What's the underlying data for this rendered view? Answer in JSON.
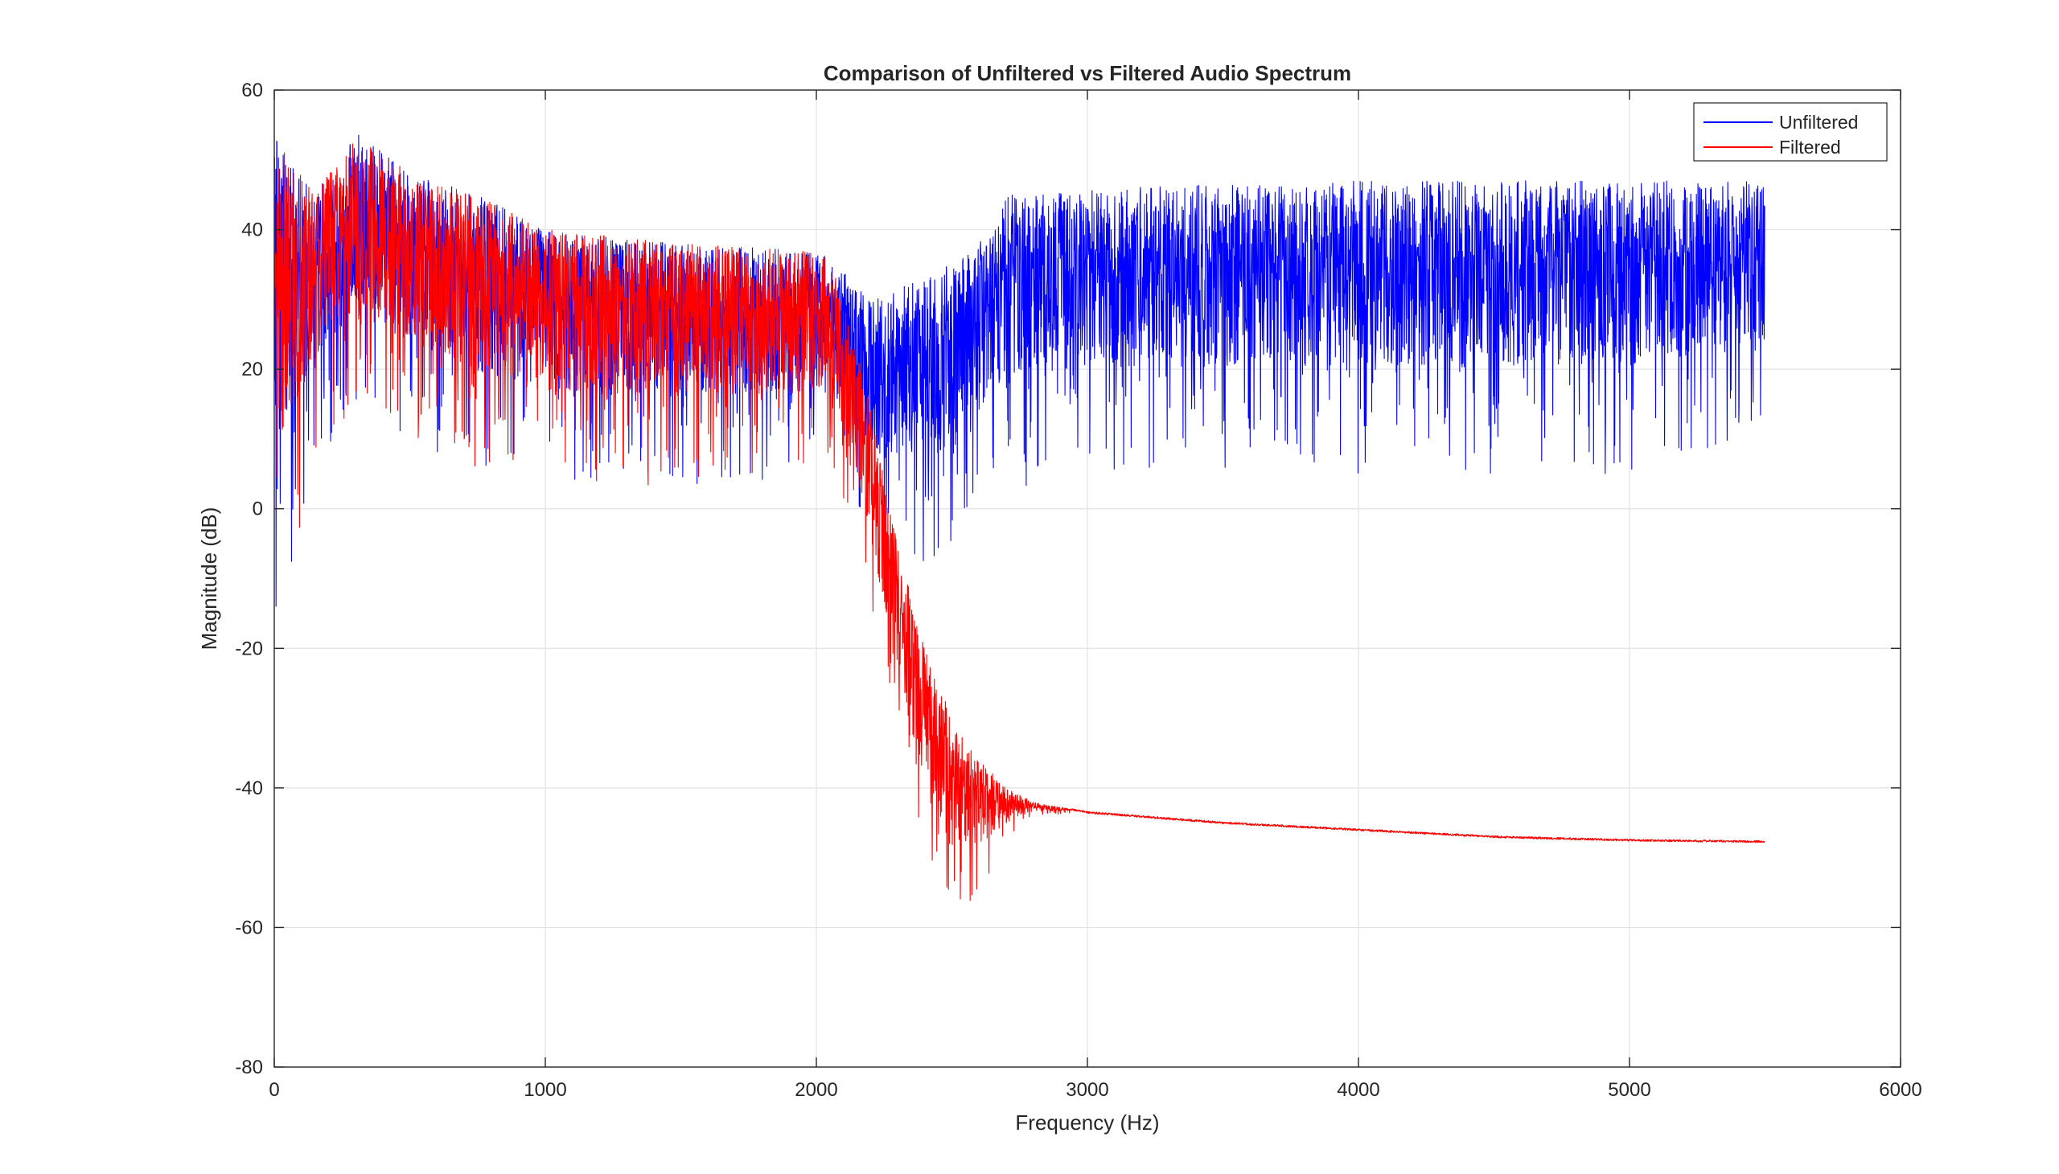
{
  "chart_data": {
    "type": "line",
    "title": "Comparison of Unfiltered vs Filtered Audio Spectrum",
    "xlabel": "Frequency (Hz)",
    "ylabel": "Magnitude (dB)",
    "xlim": [
      0,
      6000
    ],
    "ylim": [
      -80,
      60
    ],
    "xticks": [
      0,
      1000,
      2000,
      3000,
      4000,
      5000,
      6000
    ],
    "yticks": [
      -80,
      -60,
      -40,
      -20,
      0,
      20,
      40,
      60
    ],
    "xtick_labels": [
      "0",
      "1000",
      "2000",
      "3000",
      "4000",
      "5000",
      "6000"
    ],
    "ytick_labels": [
      "-80",
      "-60",
      "-40",
      "-20",
      "0",
      "20",
      "40",
      "60"
    ],
    "grid": true,
    "legend_position": "top-right",
    "series": [
      {
        "name": "Unfiltered",
        "color": "#0000ff",
        "envelope": {
          "x": [
            0,
            150,
            300,
            500,
            750,
            1000,
            1500,
            2000,
            2050,
            2200,
            2400,
            2600,
            2700,
            3000,
            4000,
            5000,
            5500
          ],
          "upper": [
            54,
            45,
            54,
            48,
            45,
            40,
            38,
            37,
            36,
            30,
            33,
            38,
            45,
            46,
            47,
            47,
            47
          ],
          "lower": [
            -17,
            5,
            15,
            10,
            5,
            3,
            3,
            5,
            12,
            -5,
            -10,
            0,
            2,
            5,
            5,
            5,
            10
          ]
        }
      },
      {
        "name": "Filtered",
        "color": "#ff0000",
        "envelope": {
          "x": [
            0,
            150,
            300,
            500,
            750,
            1000,
            1500,
            2000,
            2050,
            2100,
            2200,
            2300,
            2400,
            2500,
            2600,
            2700,
            2800,
            3000,
            3500,
            4000,
            4500,
            5000,
            5500
          ],
          "upper": [
            54,
            45,
            54,
            48,
            45,
            40,
            38,
            37,
            36,
            30,
            15,
            -5,
            -20,
            -30,
            -36,
            -40,
            -42,
            -43.5,
            -45,
            -46,
            -47,
            -47.5,
            -47.7
          ],
          "lower": [
            -17,
            5,
            15,
            10,
            5,
            3,
            3,
            5,
            8,
            0,
            -15,
            -35,
            -50,
            -60,
            -55,
            -48,
            -44,
            -43.5,
            -45,
            -46,
            -47,
            -47.5,
            -47.7
          ]
        }
      }
    ]
  }
}
